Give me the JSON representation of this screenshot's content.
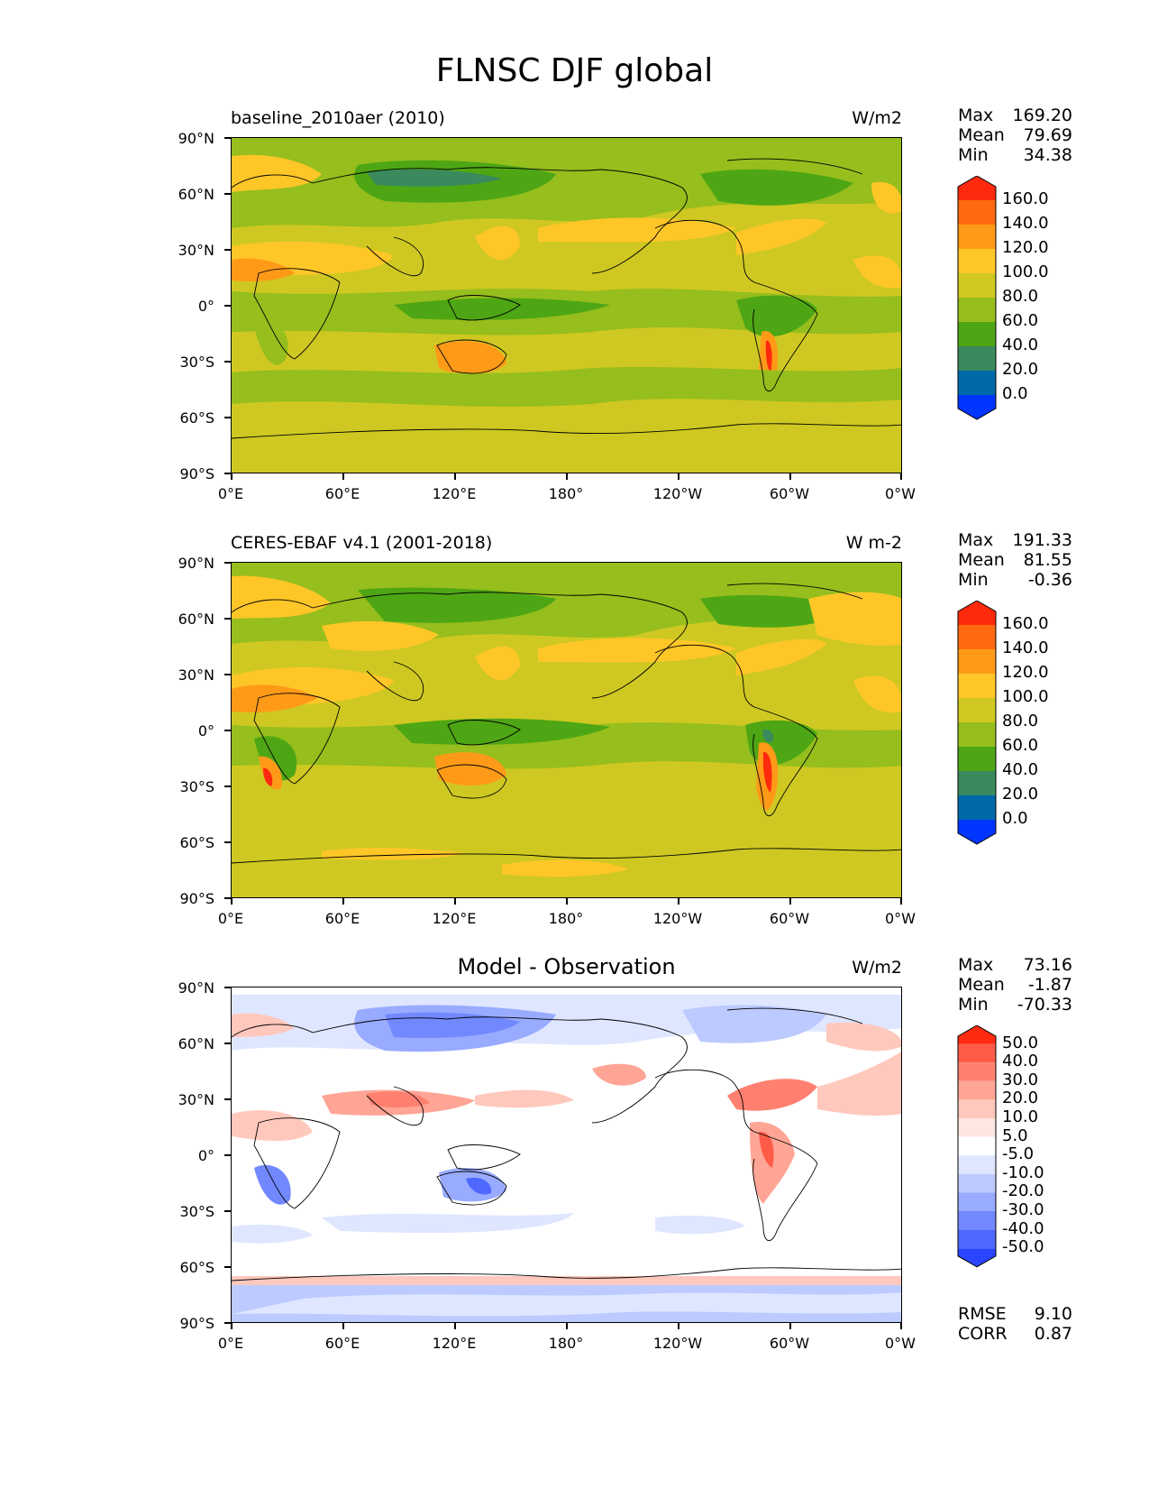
{
  "title": "FLNSC DJF global",
  "lat_labels": [
    "90°N",
    "60°N",
    "30°N",
    "0°",
    "30°S",
    "60°S",
    "90°S"
  ],
  "lon_labels": [
    "0°E",
    "60°E",
    "120°E",
    "180°",
    "120°W",
    "60°W",
    "0°W"
  ],
  "panels": [
    {
      "title": "baseline_2010aer (2010)",
      "units": "W/m2",
      "stats": {
        "max_label": "Max",
        "max": "169.20",
        "mean_label": "Mean",
        "mean": "79.69",
        "min_label": "Min",
        "min": "34.38"
      },
      "colorbar": {
        "colors": [
          "#ff2a0d",
          "#ff6a10",
          "#ff9a18",
          "#ffc628",
          "#cfc822",
          "#96be1c",
          "#4ea614",
          "#3a8a5e",
          "#0069a8",
          "#0035ff"
        ],
        "labels": [
          "160.0",
          "140.0",
          "120.0",
          "100.0",
          "80.0",
          "60.0",
          "40.0",
          "20.0",
          "0.0"
        ]
      }
    },
    {
      "title": "CERES-EBAF v4.1 (2001-2018)",
      "units": "W m-2",
      "stats": {
        "max_label": "Max",
        "max": "191.33",
        "mean_label": "Mean",
        "mean": "81.55",
        "min_label": "Min",
        "min": "-0.36"
      },
      "colorbar": {
        "colors": [
          "#ff2a0d",
          "#ff6a10",
          "#ff9a18",
          "#ffc628",
          "#cfc822",
          "#96be1c",
          "#4ea614",
          "#3a8a5e",
          "#0069a8",
          "#0035ff"
        ],
        "labels": [
          "160.0",
          "140.0",
          "120.0",
          "100.0",
          "80.0",
          "60.0",
          "40.0",
          "20.0",
          "0.0"
        ]
      }
    },
    {
      "title": "Model - Observation",
      "units": "W/m2",
      "stats": {
        "max_label": "Max",
        "max": "73.16",
        "mean_label": "Mean",
        "mean": "-1.87",
        "min_label": "Min",
        "min": "-70.33"
      },
      "colorbar": {
        "colors": [
          "#ff2a10",
          "#ff5c48",
          "#ff8070",
          "#ffa596",
          "#ffc8bd",
          "#ffe6e0",
          "#ffffff",
          "#dfe6ff",
          "#bccaff",
          "#98abff",
          "#7288ff",
          "#4f68ff",
          "#2a45ff"
        ],
        "labels": [
          "50.0",
          "40.0",
          "30.0",
          "20.0",
          "10.0",
          "5.0",
          "-5.0",
          "-10.0",
          "-20.0",
          "-30.0",
          "-40.0",
          "-50.0"
        ]
      },
      "error": {
        "rmse_label": "RMSE",
        "rmse": "9.10",
        "corr_label": "CORR",
        "corr": "0.87"
      }
    }
  ]
}
